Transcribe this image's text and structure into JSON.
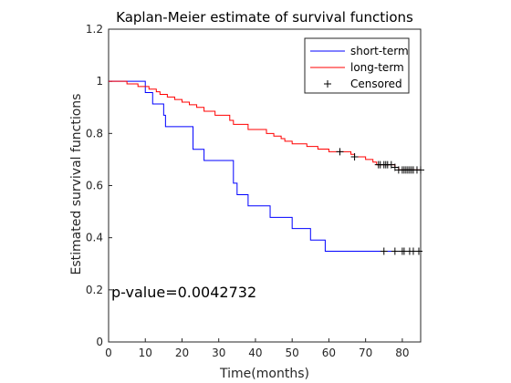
{
  "chart_data": {
    "type": "line",
    "title": "Kaplan-Meier estimate of survival functions",
    "xlabel": "Time(months)",
    "ylabel": "Estimated survival functions",
    "xlim": [
      0,
      85
    ],
    "ylim": [
      0,
      1.2
    ],
    "xticks": [
      0,
      10,
      20,
      30,
      40,
      50,
      60,
      70,
      80
    ],
    "yticks": [
      0,
      0.2,
      0.4,
      0.6,
      0.8,
      1,
      1.2
    ],
    "x_tick_labels": [
      "0",
      "10",
      "20",
      "30",
      "40",
      "50",
      "60",
      "70",
      "80"
    ],
    "y_tick_labels": [
      "0",
      "0.2",
      "0.4",
      "0.6",
      "0.8",
      "1",
      "1.2"
    ],
    "grid": false,
    "legend_position": "top-right",
    "annotation": "p-value=0.0042732",
    "series": [
      {
        "name": "short-term",
        "color": "#0000ff",
        "steps": [
          [
            0,
            1.0
          ],
          [
            10,
            0.957
          ],
          [
            12,
            0.913
          ],
          [
            15,
            0.87
          ],
          [
            15.5,
            0.826
          ],
          [
            23,
            0.739
          ],
          [
            26,
            0.696
          ],
          [
            34,
            0.609
          ],
          [
            35,
            0.565
          ],
          [
            38,
            0.522
          ],
          [
            44,
            0.478
          ],
          [
            50,
            0.435
          ],
          [
            55,
            0.391
          ],
          [
            59,
            0.348
          ],
          [
            85,
            0.348
          ]
        ],
        "censored": [
          75,
          78,
          80,
          80.5,
          82,
          83,
          84.5
        ]
      },
      {
        "name": "long-term",
        "color": "#ff0000",
        "steps": [
          [
            0,
            1.0
          ],
          [
            5,
            0.99
          ],
          [
            8,
            0.98
          ],
          [
            11,
            0.97
          ],
          [
            13,
            0.96
          ],
          [
            14,
            0.95
          ],
          [
            16,
            0.94
          ],
          [
            18,
            0.93
          ],
          [
            20,
            0.92
          ],
          [
            22,
            0.91
          ],
          [
            24,
            0.9
          ],
          [
            26,
            0.885
          ],
          [
            29,
            0.87
          ],
          [
            33,
            0.85
          ],
          [
            34,
            0.835
          ],
          [
            38,
            0.815
          ],
          [
            43,
            0.8
          ],
          [
            45,
            0.79
          ],
          [
            47,
            0.78
          ],
          [
            48,
            0.77
          ],
          [
            50,
            0.76
          ],
          [
            54,
            0.75
          ],
          [
            57,
            0.74
          ],
          [
            60,
            0.73
          ],
          [
            66,
            0.72
          ],
          [
            67,
            0.71
          ],
          [
            70,
            0.7
          ],
          [
            72,
            0.69
          ],
          [
            73,
            0.68
          ],
          [
            78,
            0.67
          ],
          [
            79,
            0.66
          ],
          [
            85,
            0.66
          ]
        ],
        "censored": [
          63,
          67,
          73.5,
          74,
          75,
          75.5,
          76,
          77,
          78,
          79,
          80,
          80.5,
          81,
          81.5,
          82,
          82.5,
          83,
          84,
          85
        ]
      }
    ],
    "legend": [
      {
        "label": "short-term",
        "kind": "line",
        "color": "#0000ff"
      },
      {
        "label": "long-term",
        "kind": "line",
        "color": "#ff0000"
      },
      {
        "label": "Censored",
        "kind": "marker",
        "color": "#000000"
      }
    ]
  }
}
